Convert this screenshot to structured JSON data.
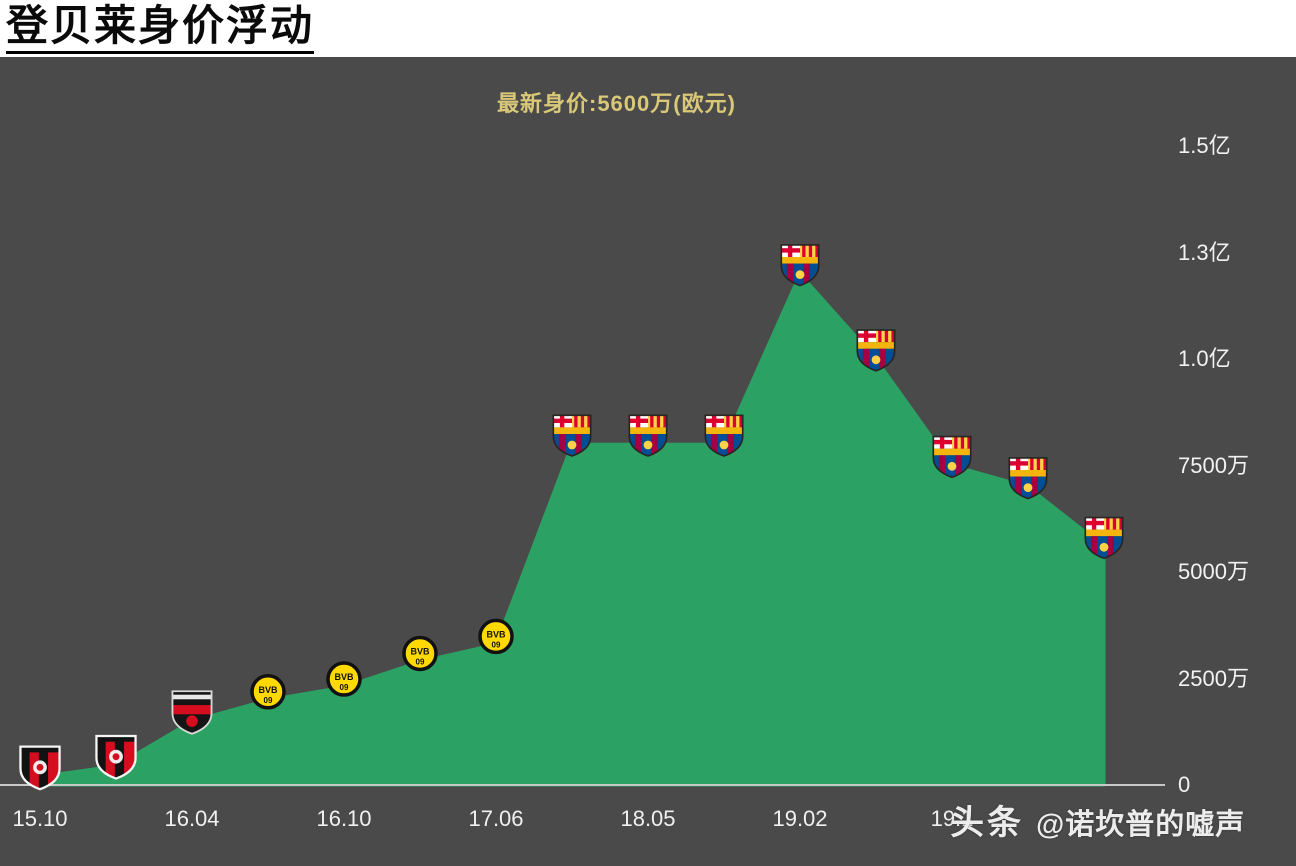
{
  "page": {
    "title": "登贝莱身价浮动",
    "watermark": {
      "brand": "头条",
      "handle": "@诺坎普的嘘声"
    }
  },
  "colors": {
    "background": "#4a4a4a",
    "header_bg": "#ffffff",
    "title_text": "#0a0a0a",
    "subtitle_yellow": "#d9c878",
    "area_green": "#2ba263",
    "axis_line": "#c8c8c8",
    "axis_text": "#f2f2f2",
    "bvb_yellow": "#ffd900",
    "rennes_red": "#d50d1e",
    "barca_blue": "#004d98",
    "barca_garnet": "#a50044",
    "barca_gold": "#f6b40e"
  },
  "chart_data": {
    "type": "area",
    "title": "登贝莱身价浮动",
    "subtitle": "最新身价:5600万(欧元)",
    "unit": "万 (欧元)",
    "ylim": [
      0,
      15000
    ],
    "grid": false,
    "legend": "none",
    "y_axis_side": "right",
    "y_ticks": [
      {
        "label": "0",
        "value": 0
      },
      {
        "label": "2500万",
        "value": 2500
      },
      {
        "label": "5000万",
        "value": 5000
      },
      {
        "label": "7500万",
        "value": 7500
      },
      {
        "label": "1.0亿",
        "value": 10000
      },
      {
        "label": "1.3亿",
        "value": 12500
      },
      {
        "label": "1.5亿",
        "value": 15000
      }
    ],
    "x_ticks": [
      {
        "label": "15.10",
        "point_index": 0
      },
      {
        "label": "16.04",
        "point_index": 2
      },
      {
        "label": "16.10",
        "point_index": 4
      },
      {
        "label": "17.06",
        "point_index": 6
      },
      {
        "label": "18.05",
        "point_index": 8
      },
      {
        "label": "19.02",
        "point_index": 10
      },
      {
        "label": "19.1",
        "point_index": 12
      }
    ],
    "points": [
      {
        "value": 200,
        "club": "rennes"
      },
      {
        "value": 450,
        "club": "rennes"
      },
      {
        "value": 1500,
        "club": "rennes-dark"
      },
      {
        "value": 2000,
        "club": "bvb"
      },
      {
        "value": 2300,
        "club": "bvb"
      },
      {
        "value": 2900,
        "club": "bvb"
      },
      {
        "value": 3300,
        "club": "bvb"
      },
      {
        "value": 8000,
        "club": "barcelona"
      },
      {
        "value": 8000,
        "club": "barcelona"
      },
      {
        "value": 8000,
        "club": "barcelona"
      },
      {
        "value": 12000,
        "club": "barcelona"
      },
      {
        "value": 10000,
        "club": "barcelona"
      },
      {
        "value": 7500,
        "club": "barcelona"
      },
      {
        "value": 7000,
        "club": "barcelona"
      },
      {
        "value": 5600,
        "club": "barcelona"
      }
    ]
  }
}
